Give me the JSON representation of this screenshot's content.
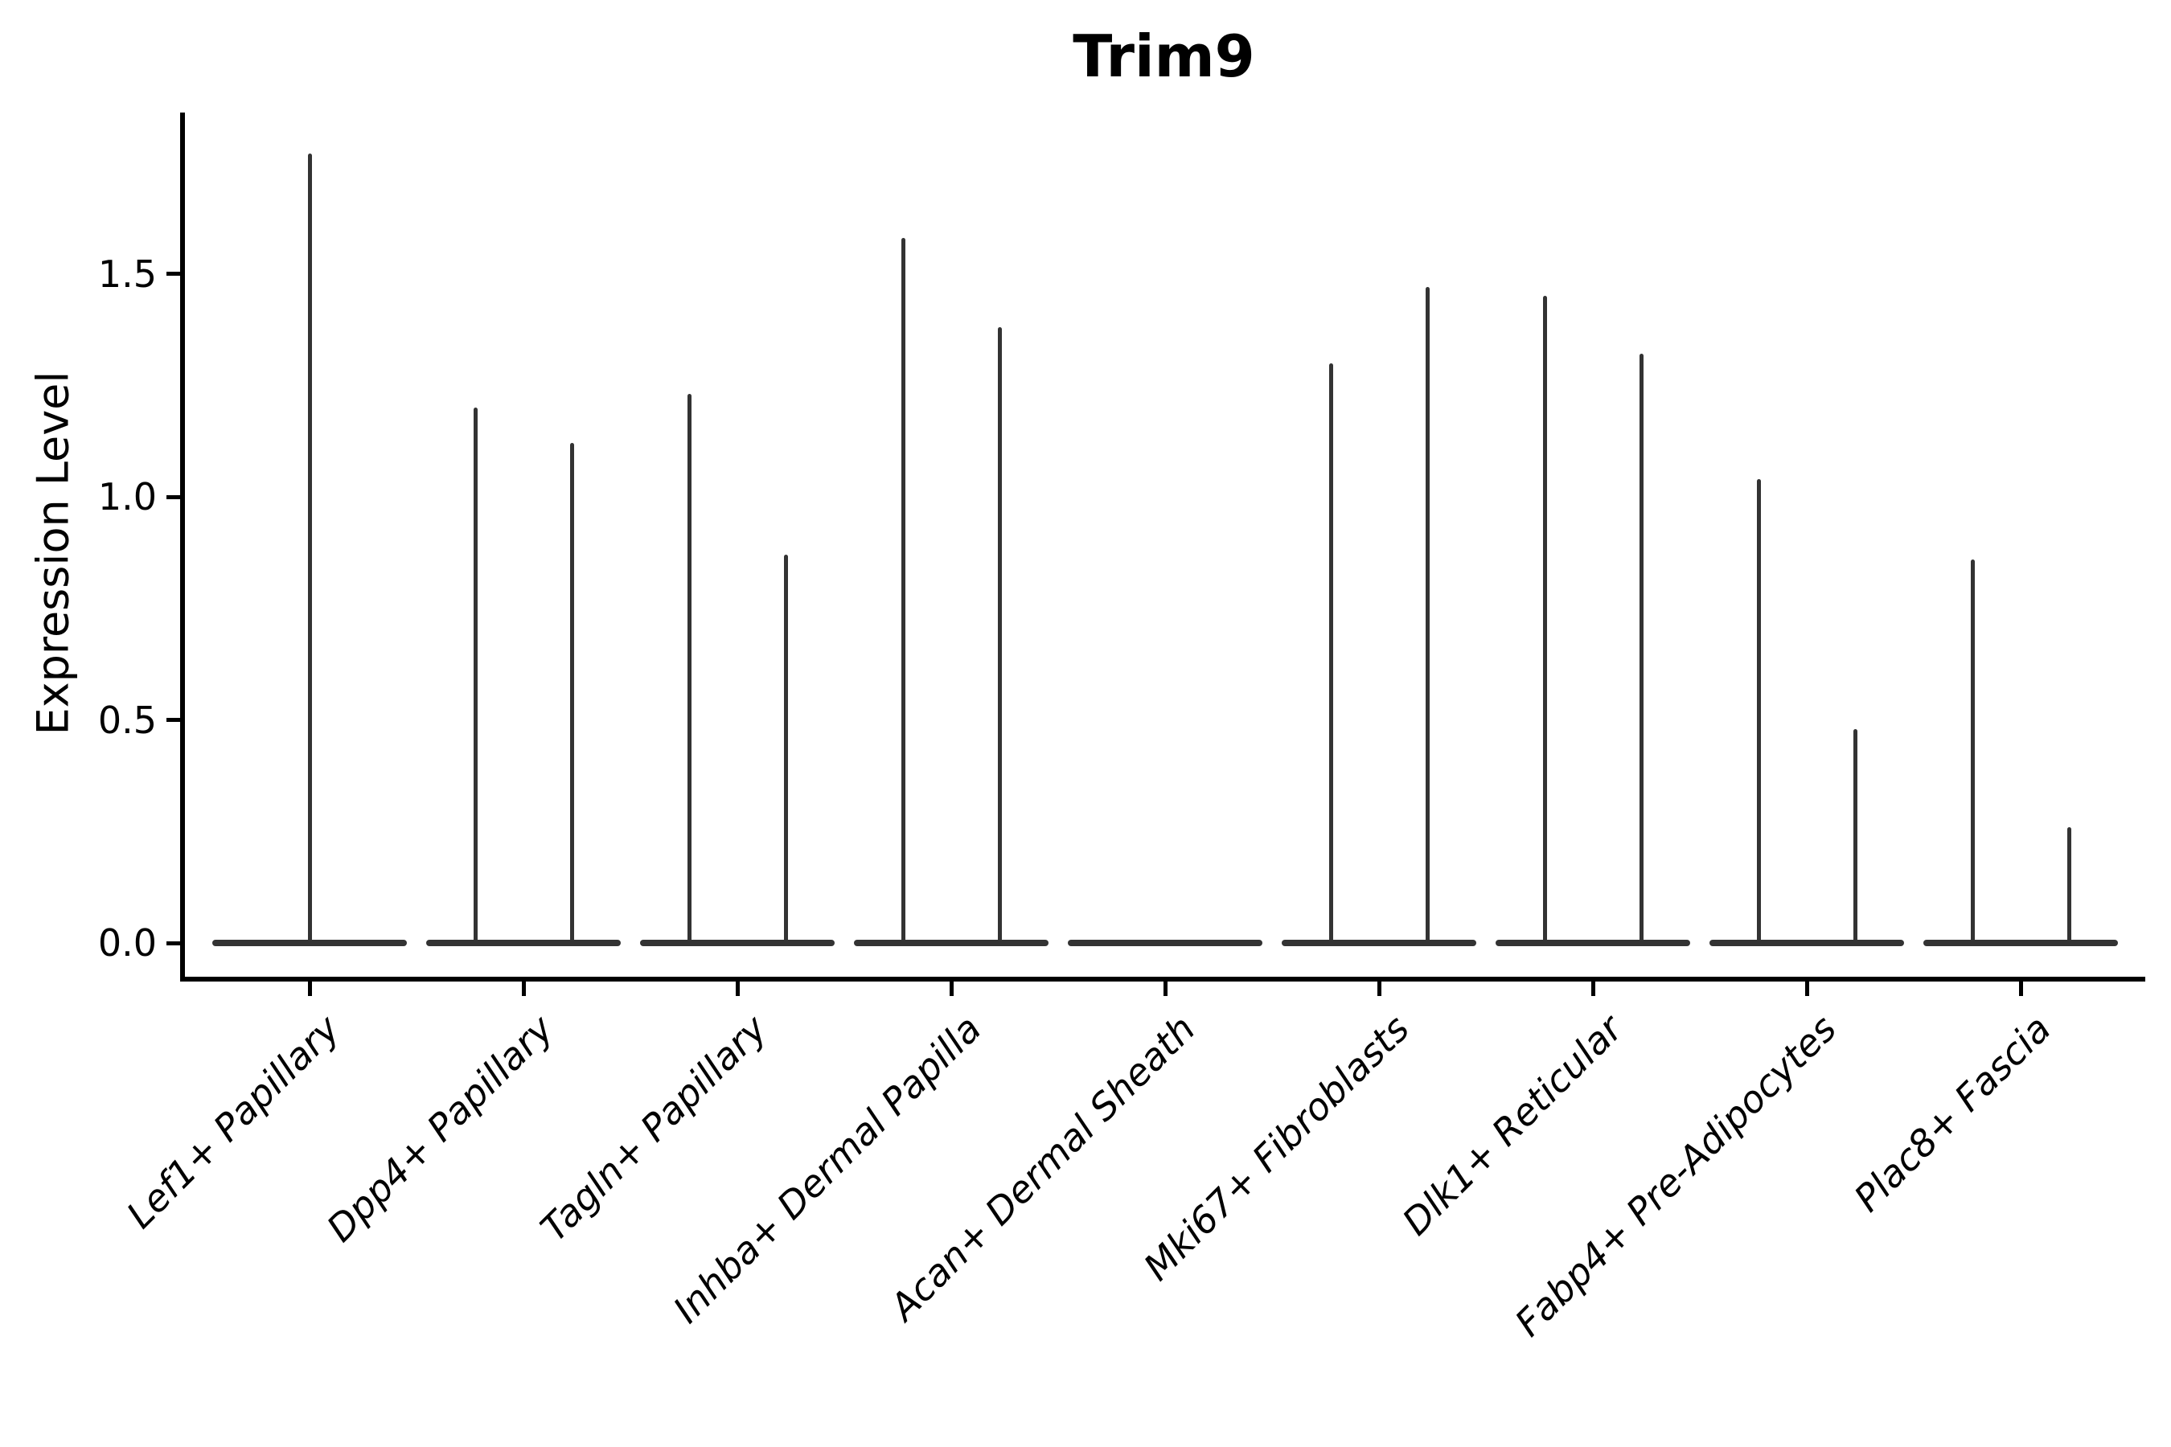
{
  "title": "Trim9",
  "colors": {
    "background": "#ffffff",
    "violin": "#333333",
    "axis": "#000000",
    "text": "#000000"
  },
  "chart_data": {
    "type": "violin",
    "title": "Trim9",
    "xlabel": "",
    "ylabel": "Expression Level",
    "grid": false,
    "legend": null,
    "ylim": [
      -0.08,
      1.86
    ],
    "yticks": [
      0.0,
      0.5,
      1.0,
      1.5
    ],
    "ytick_labels": [
      "0.0",
      "0.5",
      "1.0",
      "1.5"
    ],
    "categories": [
      "Lef1+ Papillary",
      "Dpp4+ Papillary",
      "Tagln+ Papillary",
      "Inhba+ Dermal Papilla",
      "Acan+ Dermal Sheath",
      "Mki67+ Fibroblasts",
      "Dlk1+ Reticular",
      "Fabp4+ Pre-Adipocytes",
      "Plac8+ Fascia"
    ],
    "violins": [
      {
        "category": "Lef1+ Papillary",
        "offsets": [
          0
        ],
        "maxima": [
          1.77
        ]
      },
      {
        "category": "Dpp4+ Papillary",
        "offsets": [
          -60,
          60
        ],
        "maxima": [
          1.2,
          1.12
        ]
      },
      {
        "category": "Tagln+ Papillary",
        "offsets": [
          -60,
          60
        ],
        "maxima": [
          1.23,
          0.87
        ]
      },
      {
        "category": "Inhba+ Dermal Papilla",
        "offsets": [
          -60,
          60
        ],
        "maxima": [
          1.58,
          1.38
        ]
      },
      {
        "category": "Acan+ Dermal Sheath",
        "offsets": [],
        "maxima": []
      },
      {
        "category": "Mki67+ Fibroblasts",
        "offsets": [
          -60,
          60
        ],
        "maxima": [
          1.3,
          1.47
        ]
      },
      {
        "category": "Dlk1+ Reticular",
        "offsets": [
          -60,
          60
        ],
        "maxima": [
          1.45,
          1.32
        ]
      },
      {
        "category": "Fabp4+ Pre-Adipocytes",
        "offsets": [
          -60,
          60
        ],
        "maxima": [
          1.04,
          0.48
        ]
      },
      {
        "category": "Plac8+ Fascia",
        "offsets": [
          -60,
          60
        ],
        "maxima": [
          0.86,
          0.26
        ]
      }
    ],
    "description": "Each category shows a violin of single-cell expression: a wide flat body at 0 with thin spikes rising to the maximum expression value(s)."
  }
}
